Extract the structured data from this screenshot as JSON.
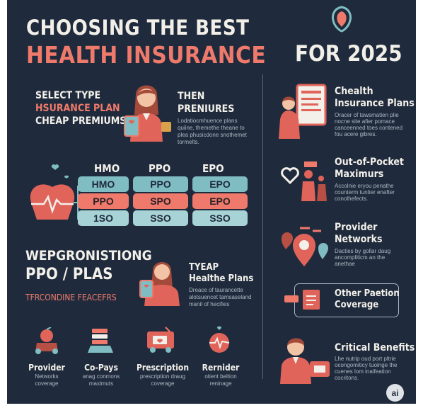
{
  "header": {
    "line1": "CHOOSING THE BEST",
    "line2": "HEALTH INSURANCE",
    "line3": "FOR 2025"
  },
  "left_top": {
    "select_type": "SELECT TYPE",
    "insurance_plan": "HSURANCE PLAN",
    "cheap_premiums": "CHEAP PREMIUMS",
    "then": "THEN",
    "premiures": "PRENIURES",
    "desc": [
      "Lodatiocmhuence plans",
      "quiine, themethe theane to",
      "plea phusicdone snothemet",
      "tormelts."
    ]
  },
  "plan_table": {
    "headers": [
      "HMO",
      "PPO",
      "EPO"
    ],
    "rows": [
      [
        "HMO",
        "PPO",
        "EPO"
      ],
      [
        "PPO",
        "SPO",
        "EPO"
      ],
      [
        "1SO",
        "SSO",
        "SSO"
      ]
    ]
  },
  "left_mid": {
    "heading1": "WEPGRONISTIONG",
    "heading2": "PPO / PLAS",
    "sub": "TFRCONDINE FEACEFRS",
    "tyeap": "TYEAP",
    "healthe_plans": "Healthe Plans",
    "desc": [
      "Dreace of taurancette",
      "alotsuencet tamsaseland",
      "manil of hecifies"
    ]
  },
  "bottom_items": [
    {
      "title": "Provider",
      "sub": [
        "Networks",
        "coverage"
      ]
    },
    {
      "title": "Co-Pays",
      "sub": [
        "anag conmons",
        "maximuts"
      ]
    },
    {
      "title": "Prescription",
      "sub": [
        "prescription draug",
        "coverage"
      ]
    },
    {
      "title": "Rernider",
      "sub": [
        "otient beltion",
        "reninage"
      ]
    }
  ],
  "right_items": [
    {
      "title": [
        "Chealth",
        "Insurance Plans"
      ],
      "desc": [
        "Oracer of tawsmatien plie",
        "nocne site afier pomace",
        "canceenned toes contened",
        "fou acere gibres."
      ]
    },
    {
      "title": [
        "Out-of-Pocket",
        "Maximurs"
      ],
      "desc": [
        "Accolnie eryou penathe",
        "counterm tuntier enafter",
        "conolhefects."
      ]
    },
    {
      "title": [
        "Provider",
        "Networks"
      ],
      "desc": [
        "Dacties by gollar daug",
        "ancompliticm an the",
        "anethae"
      ]
    },
    {
      "title": [
        "Other Paetion",
        "Coverage"
      ],
      "desc": []
    },
    {
      "title": [
        "Critical Benefits"
      ],
      "desc": [
        "Lhe nutrip oud port pltrie",
        "ocongomiticy tuoinge the",
        "cuenes lom inaifeation",
        "cocritons."
      ]
    }
  ],
  "badge": "ai",
  "colors": {
    "background": "#1f2b3c",
    "accent": "#ef7a6c",
    "teal": "#7fbdc2",
    "text": "#f3f0ea"
  }
}
